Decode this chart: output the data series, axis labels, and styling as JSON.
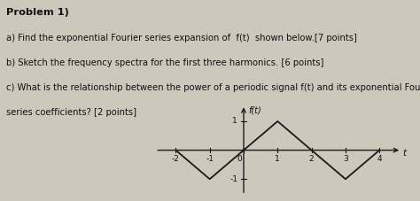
{
  "title_lines": [
    "Problem 1)",
    "a) Find the exponential Fourier series expansion of  f(t)  shown below.[7 points]",
    "b) Sketch the frequency spectra for the first three harmonics. [6 points]",
    "c) What is the relationship between the power of a periodic signal f(t) and its exponential Fourier",
    "series coefficients? [2 points]"
  ],
  "graph_x": [
    -2,
    -1,
    0,
    1,
    2,
    3,
    4
  ],
  "graph_y": [
    0,
    -1,
    0,
    1,
    0,
    -1,
    0
  ],
  "xlim": [
    -2.6,
    4.7
  ],
  "ylim": [
    -1.55,
    1.65
  ],
  "xticks": [
    -2,
    -1,
    0,
    1,
    2,
    3,
    4
  ],
  "yticks": [
    -1,
    1
  ],
  "xlabel": "t",
  "ylabel": "f(t)",
  "line_color": "#1a1a1a",
  "axis_color": "#1a1a1a",
  "background_color": "#cdc8bc",
  "text_color": "#111111"
}
